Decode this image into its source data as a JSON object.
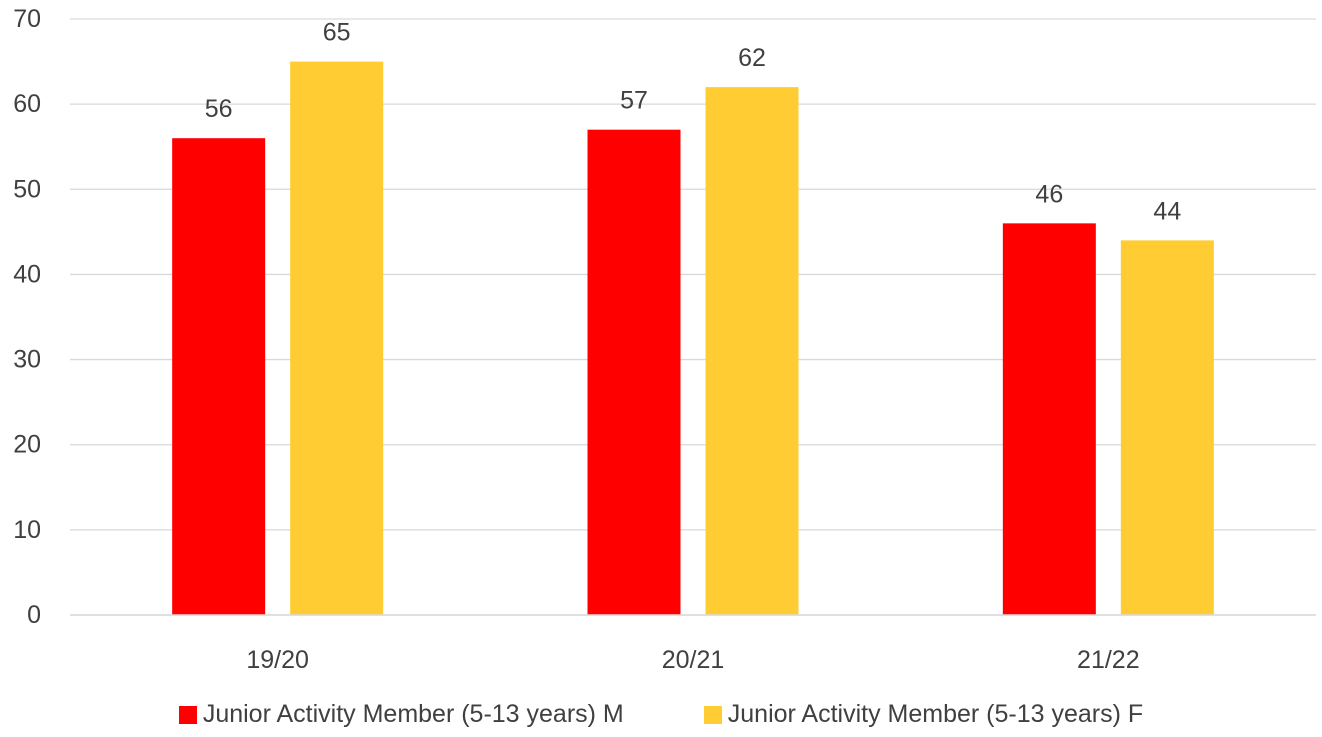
{
  "chart_data": {
    "type": "bar",
    "categories": [
      "19/20",
      "20/21",
      "21/22"
    ],
    "series": [
      {
        "name": "Junior Activity Member (5-13 years) M",
        "values": [
          56,
          57,
          46
        ],
        "color": "#FF0000"
      },
      {
        "name": "Junior Activity Member (5-13 years) F",
        "values": [
          65,
          62,
          44
        ],
        "color": "#FFCD33"
      }
    ],
    "ylim": [
      0,
      70
    ],
    "yticks": [
      0,
      10,
      20,
      30,
      40,
      50,
      60,
      70
    ],
    "grid": true,
    "legend_position": "bottom",
    "data_labels": true
  }
}
